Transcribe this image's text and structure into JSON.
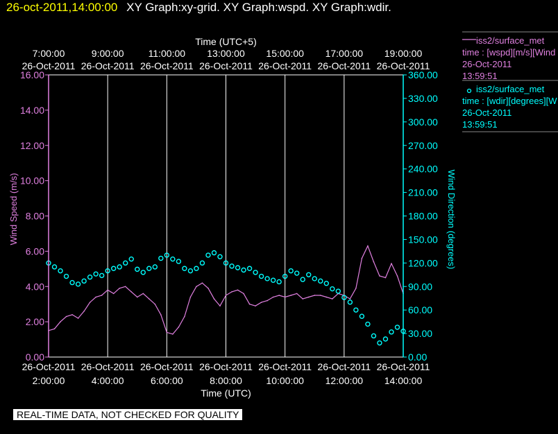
{
  "header": {
    "timestamp": "26-oct-2011,14:00:00",
    "title": "XY Graph:xy-grid.  XY Graph:wspd.  XY Graph:wdir."
  },
  "notice": "REAL-TIME DATA, NOT CHECKED FOR QUALITY",
  "legend": [
    {
      "symbol": "——",
      "name": "iss2/surface_met",
      "desc": "time : [wspd][m/s][Wind",
      "date": "26-Oct-2011",
      "time": "13:59:51",
      "color": "#e080e0"
    },
    {
      "symbol": "o",
      "name": "iss2/surface_met",
      "desc": "time : [wdir][degrees][W",
      "date": "26-Oct-2011",
      "time": "13:59:51",
      "color": "#00ffff"
    }
  ],
  "colors": {
    "speed": "#e080e0",
    "direction": "#00ffff",
    "grid": "#ffffff",
    "axis_text": "#ffffff"
  },
  "chart_data": {
    "type": "line",
    "top_axis": {
      "label": "Time (UTC+5)",
      "ticks": [
        {
          "x": 2,
          "time": "7:00:00",
          "date": "26-Oct-2011"
        },
        {
          "x": 4,
          "time": "9:00:00",
          "date": "26-Oct-2011"
        },
        {
          "x": 6,
          "time": "11:00:00",
          "date": "26-Oct-2011"
        },
        {
          "x": 8,
          "time": "13:00:00",
          "date": "26-Oct-2011"
        },
        {
          "x": 10,
          "time": "15:00:00",
          "date": "26-Oct-2011"
        },
        {
          "x": 12,
          "time": "17:00:00",
          "date": "26-Oct-2011"
        },
        {
          "x": 14,
          "time": "19:00:00",
          "date": "26-Oct-2011"
        }
      ]
    },
    "bottom_axis": {
      "label": "Time (UTC)",
      "ticks": [
        {
          "x": 2,
          "date": "26-Oct-2011",
          "time": "2:00:00"
        },
        {
          "x": 4,
          "date": "26-Oct-2011",
          "time": "4:00:00"
        },
        {
          "x": 6,
          "date": "26-Oct-2011",
          "time": "6:00:00"
        },
        {
          "x": 8,
          "date": "26-Oct-2011",
          "time": "8:00:00"
        },
        {
          "x": 10,
          "date": "26-Oct-2011",
          "time": "10:00:00"
        },
        {
          "x": 12,
          "date": "26-Oct-2011",
          "time": "12:00:00"
        },
        {
          "x": 14,
          "date": "26-Oct-2011",
          "time": "14:00:00"
        }
      ]
    },
    "xlim": [
      2,
      14
    ],
    "left_axis": {
      "label": "Wind Speed (m/s)",
      "ylim": [
        0,
        16
      ],
      "ticks": [
        "0.00",
        "2.00",
        "4.00",
        "6.00",
        "8.00",
        "10.00",
        "12.00",
        "14.00",
        "16.00"
      ]
    },
    "right_axis": {
      "label": "Wind Direction (degrees)",
      "ylim": [
        0,
        360
      ],
      "ticks": [
        "0.00",
        "30.00",
        "60.00",
        "90.00",
        "120.00",
        "150.00",
        "180.00",
        "210.00",
        "240.00",
        "270.00",
        "300.00",
        "330.00",
        "360.00"
      ]
    },
    "grid": true,
    "series": [
      {
        "name": "iss2/surface_met",
        "axis": "left",
        "style": "line",
        "x": [
          2.0,
          2.2,
          2.4,
          2.6,
          2.8,
          3.0,
          3.2,
          3.4,
          3.6,
          3.8,
          4.0,
          4.2,
          4.4,
          4.6,
          4.8,
          5.0,
          5.2,
          5.4,
          5.6,
          5.8,
          6.0,
          6.2,
          6.4,
          6.6,
          6.8,
          7.0,
          7.2,
          7.4,
          7.6,
          7.8,
          8.0,
          8.2,
          8.4,
          8.6,
          8.8,
          9.0,
          9.2,
          9.4,
          9.6,
          9.8,
          10.0,
          10.2,
          10.4,
          10.6,
          10.8,
          11.0,
          11.2,
          11.4,
          11.6,
          11.8,
          12.0,
          12.2,
          12.4,
          12.6,
          12.8,
          13.0,
          13.2,
          13.4,
          13.6,
          13.8,
          14.0
        ],
        "y": [
          1.5,
          1.6,
          2.0,
          2.3,
          2.4,
          2.2,
          2.6,
          3.1,
          3.4,
          3.5,
          3.8,
          3.6,
          3.9,
          4.0,
          3.7,
          3.4,
          3.6,
          3.3,
          3.0,
          2.4,
          1.4,
          1.3,
          1.7,
          2.3,
          3.4,
          4.0,
          4.2,
          3.9,
          3.3,
          2.9,
          3.5,
          3.7,
          3.8,
          3.6,
          3.0,
          2.9,
          3.1,
          3.2,
          3.4,
          3.5,
          3.4,
          3.5,
          3.6,
          3.3,
          3.4,
          3.5,
          3.5,
          3.4,
          3.3,
          3.6,
          3.5,
          3.3,
          3.9,
          5.6,
          6.3,
          5.4,
          4.6,
          4.5,
          5.3,
          4.6,
          3.6
        ]
      },
      {
        "name": "iss2/surface_met",
        "axis": "right",
        "style": "markers",
        "x": [
          2.0,
          2.2,
          2.4,
          2.6,
          2.8,
          3.0,
          3.2,
          3.4,
          3.6,
          3.8,
          4.0,
          4.2,
          4.4,
          4.6,
          4.8,
          5.0,
          5.2,
          5.4,
          5.6,
          5.8,
          6.0,
          6.2,
          6.4,
          6.6,
          6.8,
          7.0,
          7.2,
          7.4,
          7.6,
          7.8,
          8.0,
          8.2,
          8.4,
          8.6,
          8.8,
          9.0,
          9.2,
          9.4,
          9.6,
          9.8,
          10.0,
          10.2,
          10.4,
          10.6,
          10.8,
          11.0,
          11.2,
          11.4,
          11.6,
          11.8,
          12.0,
          12.2,
          12.4,
          12.6,
          12.8,
          13.0,
          13.2,
          13.4,
          13.6,
          13.8,
          14.0
        ],
        "y": [
          120,
          115,
          110,
          103,
          95,
          93,
          97,
          102,
          106,
          104,
          110,
          113,
          115,
          120,
          125,
          112,
          108,
          113,
          115,
          126,
          130,
          125,
          122,
          113,
          110,
          113,
          120,
          130,
          133,
          128,
          120,
          116,
          114,
          111,
          113,
          108,
          103,
          100,
          98,
          96,
          103,
          110,
          107,
          99,
          105,
          100,
          97,
          94,
          87,
          84,
          76,
          70,
          60,
          52,
          42,
          27,
          18,
          23,
          32,
          38,
          33
        ]
      }
    ]
  }
}
